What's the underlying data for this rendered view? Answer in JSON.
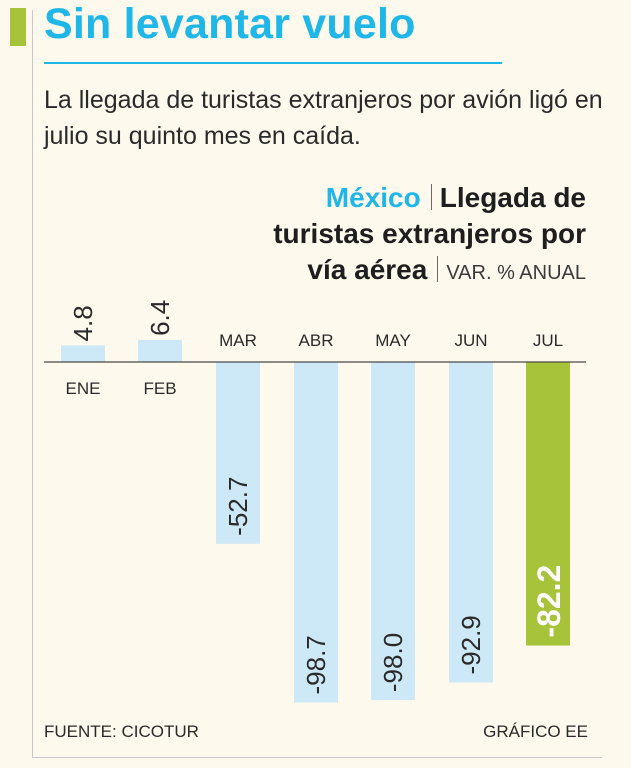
{
  "headline": "Sin levantar vuelo",
  "subtitle": "La llegada de turistas extranjeros por avión ligó en julio su quinto mes en caída.",
  "chart_heading": {
    "country": "México",
    "title_line1": "Llegada de",
    "title_line2": "turistas extranjeros por",
    "title_line3": "vía aérea",
    "unit": "VAR. % ANUAL"
  },
  "footer": {
    "source": "FUENTE: CICOTUR",
    "credit": "GRÁFICO EE"
  },
  "colors": {
    "brand_blue": "#1fb6e8",
    "accent_green": "#a7c33a",
    "bar_blue": "#cde9f7",
    "bar_highlight": "#a7c33a"
  },
  "chart_data": {
    "type": "bar",
    "title": "Llegada de turistas extranjeros por vía aérea",
    "ylabel": "VAR. % ANUAL",
    "xlabel": "",
    "categories": [
      "ENE",
      "FEB",
      "MAR",
      "ABR",
      "MAY",
      "JUN",
      "JUL"
    ],
    "values": [
      4.8,
      6.4,
      -52.7,
      -98.7,
      -98.0,
      -92.9,
      -82.2
    ],
    "value_labels": [
      "4.8",
      "6.4",
      "-52.7",
      "-98.7",
      "-98.0",
      "-92.9",
      "-82.2"
    ],
    "highlight_index": 6,
    "ylim": [
      -100,
      10
    ]
  }
}
